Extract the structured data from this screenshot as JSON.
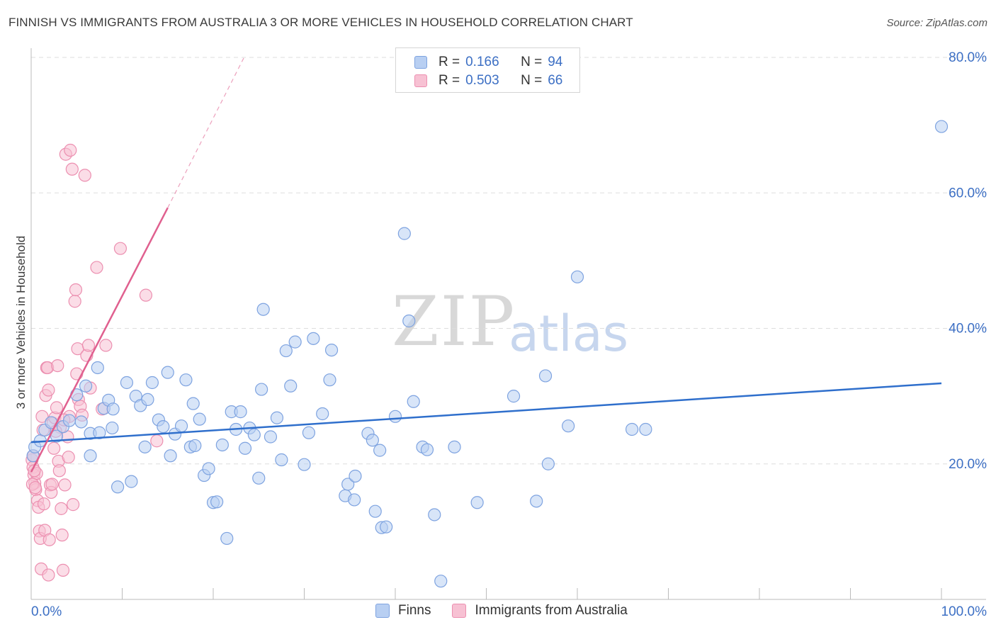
{
  "title": "FINNISH VS IMMIGRANTS FROM AUSTRALIA 3 OR MORE VEHICLES IN HOUSEHOLD CORRELATION CHART",
  "source": "Source: ZipAtlas.com",
  "watermark": {
    "zip": "ZIP",
    "atlas": "atlas"
  },
  "legend": {
    "r_label": "R =",
    "n_label": "N =",
    "rows": [
      {
        "r": "0.166",
        "n": "94"
      },
      {
        "r": "0.503",
        "n": "66"
      }
    ]
  },
  "bottom_legend": [
    "Finns",
    "Immigrants from Australia"
  ],
  "colors": {
    "finns_fill": "#b8cff2",
    "finns_stroke": "#7ea3e0",
    "finns_line": "#2f6fcc",
    "aus_fill": "#f7c1d3",
    "aus_stroke": "#ec8fb0",
    "aus_line": "#e0608f",
    "tick_label": "#3c6fc4",
    "grid": "#dddddd"
  },
  "chart_data": {
    "type": "scatter",
    "title": "FINNISH VS IMMIGRANTS FROM AUSTRALIA 3 OR MORE VEHICLES IN HOUSEHOLD CORRELATION CHART",
    "xlabel": "",
    "ylabel": "3 or more Vehicles in Household",
    "xlim": [
      0,
      100
    ],
    "ylim": [
      0,
      80
    ],
    "x_tick_labels": [
      "0.0%",
      "100.0%"
    ],
    "y_ticks": [
      20,
      40,
      60,
      80
    ],
    "y_tick_labels": [
      "20.0%",
      "40.0%",
      "60.0%",
      "80.0%"
    ],
    "grid": true,
    "series": [
      {
        "name": "Finns",
        "R": 0.166,
        "N": 94,
        "trend": {
          "x": [
            0,
            100
          ],
          "y": [
            23.2,
            31.9
          ]
        },
        "points": [
          [
            0.2,
            21.2
          ],
          [
            0.4,
            22.5
          ],
          [
            1.0,
            23.4
          ],
          [
            1.5,
            25.0
          ],
          [
            2.2,
            26.1
          ],
          [
            2.8,
            24.1
          ],
          [
            3.5,
            25.5
          ],
          [
            4.2,
            26.4
          ],
          [
            5.0,
            30.2
          ],
          [
            5.5,
            26.2
          ],
          [
            6.0,
            31.5
          ],
          [
            6.5,
            24.5
          ],
          [
            6.5,
            21.2
          ],
          [
            7.3,
            34.2
          ],
          [
            7.5,
            24.6
          ],
          [
            8.0,
            28.2
          ],
          [
            8.5,
            29.4
          ],
          [
            8.9,
            25.3
          ],
          [
            9.5,
            16.6
          ],
          [
            10.5,
            32.0
          ],
          [
            11.0,
            17.4
          ],
          [
            11.5,
            30.0
          ],
          [
            12.0,
            28.6
          ],
          [
            12.5,
            22.5
          ],
          [
            12.8,
            29.5
          ],
          [
            13.3,
            32.0
          ],
          [
            14.0,
            26.5
          ],
          [
            14.5,
            25.5
          ],
          [
            15.0,
            33.5
          ],
          [
            15.3,
            21.2
          ],
          [
            15.8,
            24.4
          ],
          [
            16.5,
            25.6
          ],
          [
            17.0,
            32.4
          ],
          [
            17.5,
            22.5
          ],
          [
            17.8,
            28.9
          ],
          [
            18.0,
            22.7
          ],
          [
            18.5,
            26.6
          ],
          [
            19.0,
            18.3
          ],
          [
            19.5,
            19.3
          ],
          [
            20.0,
            14.3
          ],
          [
            20.4,
            14.4
          ],
          [
            21.0,
            22.8
          ],
          [
            21.5,
            9.0
          ],
          [
            22.0,
            27.7
          ],
          [
            22.5,
            25.1
          ],
          [
            23.0,
            27.7
          ],
          [
            23.5,
            22.3
          ],
          [
            24.0,
            25.3
          ],
          [
            24.5,
            24.3
          ],
          [
            25.0,
            17.9
          ],
          [
            25.5,
            42.8
          ],
          [
            25.3,
            31.0
          ],
          [
            26.3,
            24.0
          ],
          [
            27.0,
            26.8
          ],
          [
            27.5,
            20.6
          ],
          [
            28.0,
            36.7
          ],
          [
            28.5,
            31.5
          ],
          [
            29.0,
            38.0
          ],
          [
            30.0,
            19.9
          ],
          [
            30.5,
            24.6
          ],
          [
            31.0,
            38.5
          ],
          [
            32.0,
            27.4
          ],
          [
            32.8,
            32.4
          ],
          [
            33.0,
            36.8
          ],
          [
            34.5,
            15.3
          ],
          [
            34.8,
            17.0
          ],
          [
            35.5,
            14.7
          ],
          [
            35.6,
            18.2
          ],
          [
            37.0,
            24.5
          ],
          [
            37.5,
            23.5
          ],
          [
            37.8,
            13.0
          ],
          [
            38.3,
            22.0
          ],
          [
            38.5,
            10.6
          ],
          [
            39.0,
            10.7
          ],
          [
            40.0,
            27.0
          ],
          [
            41.0,
            54.0
          ],
          [
            41.5,
            41.1
          ],
          [
            42.0,
            29.2
          ],
          [
            43.0,
            22.5
          ],
          [
            43.5,
            22.1
          ],
          [
            44.3,
            12.5
          ],
          [
            45.0,
            2.7
          ],
          [
            46.5,
            22.5
          ],
          [
            49.0,
            14.3
          ],
          [
            53.0,
            30.0
          ],
          [
            55.5,
            14.5
          ],
          [
            56.5,
            33.0
          ],
          [
            56.8,
            20.0
          ],
          [
            59.0,
            25.6
          ],
          [
            60.0,
            47.6
          ],
          [
            66.0,
            25.1
          ],
          [
            67.5,
            25.1
          ],
          [
            100.0,
            69.8
          ],
          [
            9.0,
            28.1
          ]
        ]
      },
      {
        "name": "Immigrants from Australia",
        "R": 0.503,
        "N": 66,
        "trend": {
          "x": [
            0,
            15
          ],
          "y": [
            18.8,
            57.8
          ]
        },
        "trend_dashed": {
          "x": [
            15,
            23.5
          ],
          "y": [
            57.8,
            80.3
          ]
        },
        "points": [
          [
            0.1,
            20.6
          ],
          [
            0.2,
            19.5
          ],
          [
            0.3,
            18.4
          ],
          [
            0.4,
            17.2
          ],
          [
            0.5,
            16.2
          ],
          [
            0.6,
            18.6
          ],
          [
            0.7,
            14.6
          ],
          [
            0.8,
            13.6
          ],
          [
            0.9,
            10.1
          ],
          [
            1.0,
            9.0
          ],
          [
            1.1,
            4.5
          ],
          [
            1.2,
            27.0
          ],
          [
            1.3,
            25.0
          ],
          [
            1.4,
            14.1
          ],
          [
            1.5,
            10.2
          ],
          [
            1.6,
            30.1
          ],
          [
            1.7,
            34.2
          ],
          [
            1.8,
            34.2
          ],
          [
            1.9,
            30.9
          ],
          [
            2.0,
            8.8
          ],
          [
            2.1,
            16.9
          ],
          [
            2.2,
            15.8
          ],
          [
            2.4,
            26.0
          ],
          [
            2.5,
            22.3
          ],
          [
            2.6,
            26.8
          ],
          [
            2.8,
            28.3
          ],
          [
            2.9,
            34.5
          ],
          [
            3.0,
            20.4
          ],
          [
            3.2,
            25.4
          ],
          [
            3.3,
            13.4
          ],
          [
            3.4,
            9.5
          ],
          [
            3.5,
            4.3
          ],
          [
            3.7,
            16.9
          ],
          [
            3.8,
            65.7
          ],
          [
            4.0,
            24.0
          ],
          [
            4.1,
            21.0
          ],
          [
            4.2,
            27.0
          ],
          [
            4.3,
            66.3
          ],
          [
            4.5,
            63.5
          ],
          [
            4.6,
            14.0
          ],
          [
            4.8,
            44.0
          ],
          [
            4.9,
            45.7
          ],
          [
            5.0,
            33.3
          ],
          [
            5.1,
            37.0
          ],
          [
            5.2,
            29.5
          ],
          [
            5.4,
            28.5
          ],
          [
            5.6,
            27.2
          ],
          [
            5.9,
            62.6
          ],
          [
            6.1,
            36.0
          ],
          [
            6.3,
            37.5
          ],
          [
            6.5,
            31.2
          ],
          [
            7.2,
            49.0
          ],
          [
            7.8,
            28.1
          ],
          [
            8.2,
            37.5
          ],
          [
            9.8,
            51.8
          ],
          [
            12.6,
            44.9
          ],
          [
            13.8,
            23.4
          ],
          [
            0.15,
            17.0
          ],
          [
            0.25,
            21.2
          ],
          [
            0.35,
            19.0
          ],
          [
            0.45,
            16.5
          ],
          [
            1.9,
            3.6
          ],
          [
            2.3,
            17.0
          ],
          [
            3.1,
            19.0
          ],
          [
            3.6,
            26.5
          ],
          [
            2.7,
            24.8
          ]
        ]
      }
    ]
  }
}
